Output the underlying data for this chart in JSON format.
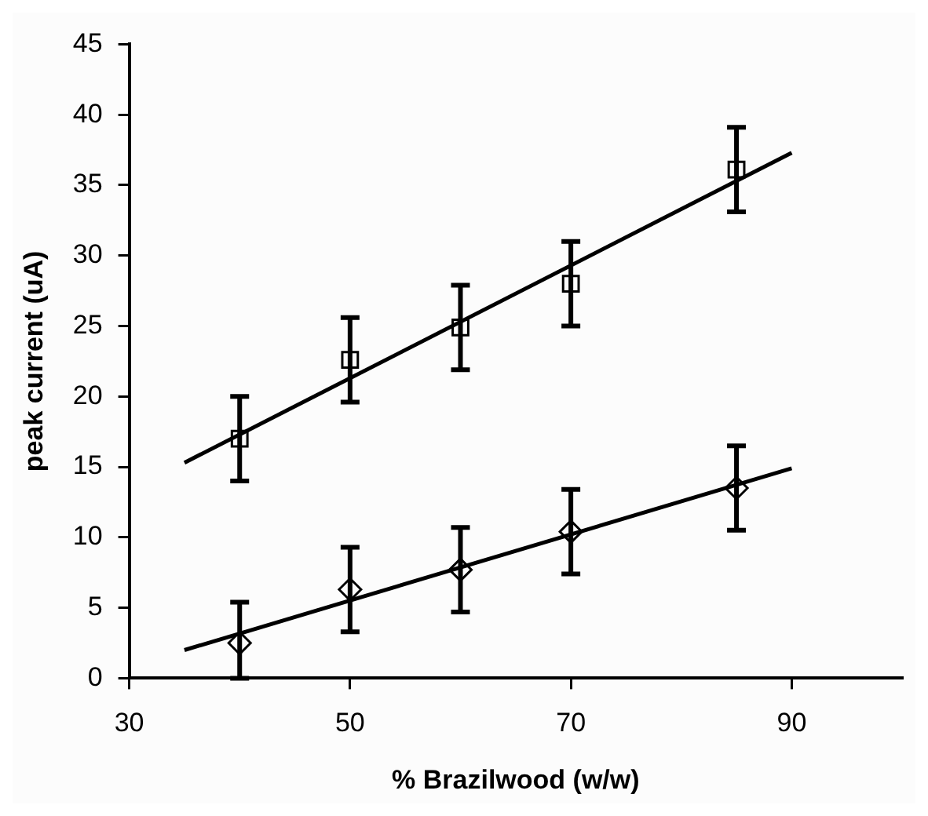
{
  "chart_data": {
    "type": "scatter",
    "xlabel": "% Brazilwood (w/w)",
    "ylabel": "peak current (uA)",
    "xlim": [
      30,
      100
    ],
    "xticks": [
      30,
      50,
      70,
      90
    ],
    "ylim": [
      0,
      45
    ],
    "yticks": [
      0,
      5,
      10,
      15,
      20,
      25,
      30,
      35,
      40,
      45
    ],
    "grid": false,
    "legend": false,
    "series": [
      {
        "type": "scatter",
        "marker": "square",
        "color": "#000000",
        "x": [
          40,
          50,
          60,
          70,
          85
        ],
        "values": [
          17,
          22.6,
          24.9,
          28,
          36.1
        ],
        "errors": [
          3,
          3,
          3,
          3,
          3
        ]
      },
      {
        "type": "scatter",
        "marker": "diamond",
        "color": "#000000",
        "x": [
          40,
          50,
          60,
          70,
          85
        ],
        "values": [
          2.5,
          6.3,
          7.7,
          10.4,
          13.5
        ],
        "errors": [
          [
            0,
            5.4
          ],
          3,
          3,
          3,
          3
        ]
      },
      {
        "type": "line",
        "marker": "none",
        "line_style": "solid",
        "color": "#000000",
        "x": [
          35,
          90
        ],
        "values": [
          15.3,
          37.3
        ]
      },
      {
        "type": "line",
        "marker": "none",
        "line_style": "solid",
        "color": "#000000",
        "x": [
          35,
          90
        ],
        "values": [
          2,
          14.9
        ]
      }
    ]
  }
}
